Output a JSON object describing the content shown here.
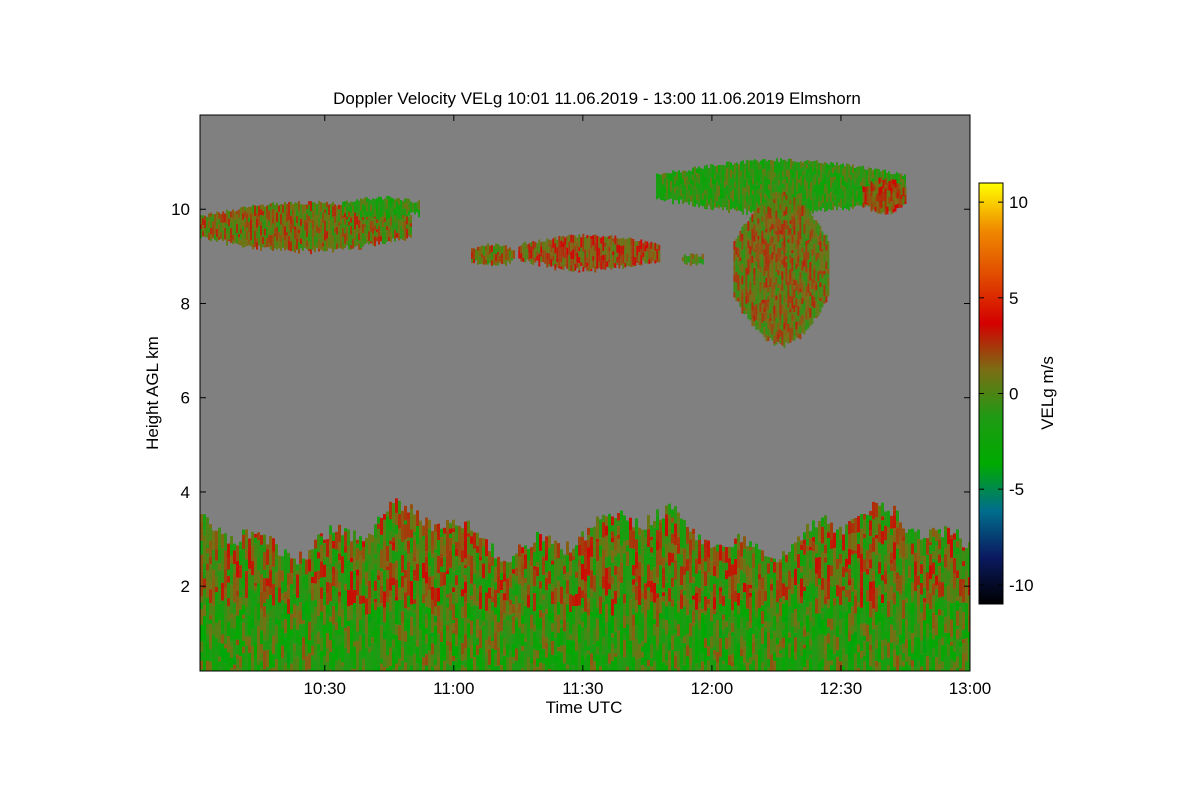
{
  "chart_data": {
    "type": "heatmap",
    "title": "Doppler Velocity VELg   10:01 11.06.2019 - 13:00 11.06.2019 Elmshorn",
    "xlabel": "Time UTC",
    "ylabel": "Height AGL km",
    "x_ticks": [
      "10:30",
      "11:00",
      "11:30",
      "12:00",
      "12:30",
      "13:00"
    ],
    "x_tick_minutes": [
      30,
      60,
      90,
      120,
      150,
      180
    ],
    "xlim_minutes": [
      1,
      180
    ],
    "y_ticks": [
      "2",
      "4",
      "6",
      "8",
      "10"
    ],
    "y_tick_values": [
      2,
      4,
      6,
      8,
      10
    ],
    "ylim": [
      0.2,
      12.0
    ],
    "colorbar": {
      "label": "VELg m/s",
      "ticks": [
        "10",
        "5",
        "0",
        "-5",
        "-10"
      ],
      "tick_values": [
        10,
        5,
        0,
        -5,
        -10
      ],
      "range": [
        -11,
        11
      ],
      "colors": [
        "#000000",
        "#0a1a60",
        "#006e8c",
        "#00aa00",
        "#1f9a14",
        "#7a6e14",
        "#d40000",
        "#e04a00",
        "#f08a00",
        "#ffff00"
      ]
    },
    "background_color": "#808080",
    "regions": [
      {
        "t0": 1,
        "t1": 180,
        "h0": 0.2,
        "h1": 3.3,
        "v": 0.5
      },
      {
        "t0": 1,
        "t1": 50,
        "h0": 9.2,
        "h1": 10.1,
        "v": 1
      },
      {
        "t0": 34,
        "t1": 52,
        "h0": 9.9,
        "h1": 10.2,
        "v": -1
      },
      {
        "t0": 64,
        "t1": 74,
        "h0": 8.9,
        "h1": 9.2,
        "v": 1
      },
      {
        "t0": 75,
        "t1": 108,
        "h0": 8.8,
        "h1": 9.4,
        "v": 2
      },
      {
        "t0": 113,
        "t1": 118,
        "h0": 8.9,
        "h1": 9.0,
        "v": 0
      },
      {
        "t0": 107,
        "t1": 165,
        "h0": 10.0,
        "h1": 11.0,
        "v": -1
      },
      {
        "t0": 155,
        "t1": 165,
        "h0": 10.0,
        "h1": 10.6,
        "v": 2
      },
      {
        "t0": 125,
        "t1": 147,
        "h0": 7.2,
        "h1": 10.3,
        "v": 1
      }
    ]
  }
}
